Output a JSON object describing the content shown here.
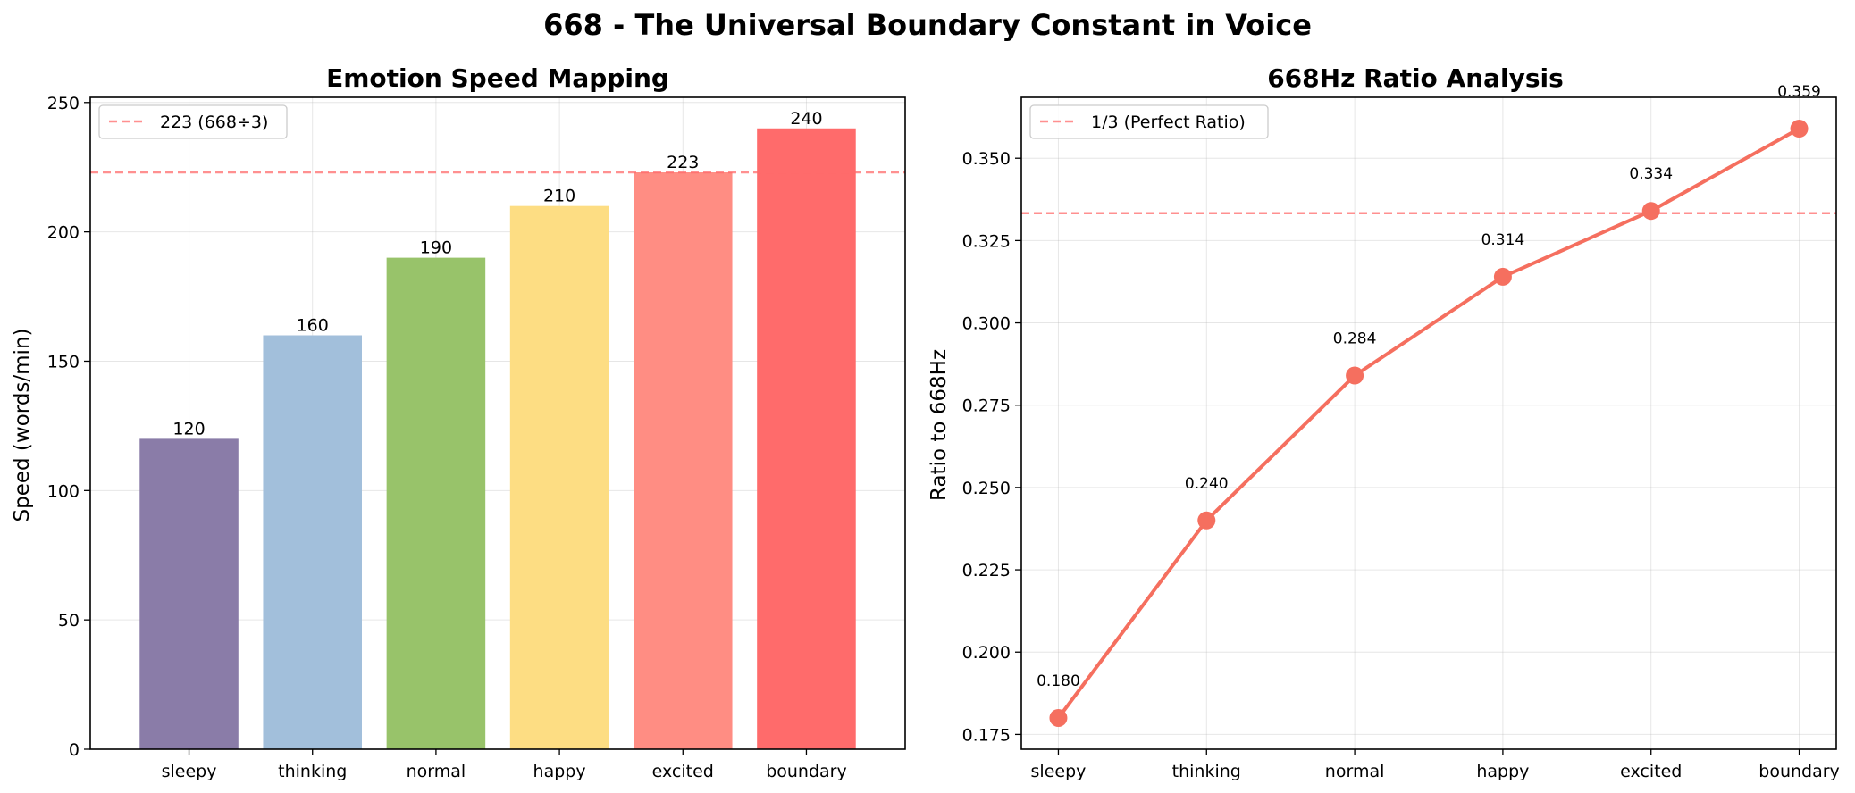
{
  "figure_title": "668 - The Universal Boundary Constant in Voice",
  "chart_data": [
    {
      "type": "bar",
      "title": "Emotion Speed Mapping",
      "xlabel": "",
      "ylabel": "Speed (words/min)",
      "categories": [
        "sleepy",
        "thinking",
        "normal",
        "happy",
        "excited",
        "boundary"
      ],
      "values": [
        120,
        160,
        190,
        210,
        223,
        240
      ],
      "value_labels": [
        "120",
        "160",
        "190",
        "210",
        "223",
        "240"
      ],
      "colors": [
        "#8a7ca8",
        "#a2bfdb",
        "#98c36a",
        "#fddd83",
        "#ff8d83",
        "#ff6b6b"
      ],
      "ylim": [
        0,
        252
      ],
      "yticks": [
        0,
        50,
        100,
        150,
        200,
        250
      ],
      "ytick_labels": [
        "0",
        "50",
        "100",
        "150",
        "200",
        "250"
      ],
      "reference_line": {
        "value": 223,
        "label": "223 (668÷3)",
        "color": "#ff6b6b",
        "style": "dashed"
      },
      "grid": true,
      "legend_position": "top-left"
    },
    {
      "type": "line",
      "title": "668Hz Ratio Analysis",
      "xlabel": "",
      "ylabel": "Ratio to 668Hz",
      "categories": [
        "sleepy",
        "thinking",
        "normal",
        "happy",
        "excited",
        "boundary"
      ],
      "values": [
        0.18,
        0.24,
        0.284,
        0.314,
        0.334,
        0.359
      ],
      "value_labels": [
        "0.180",
        "0.240",
        "0.284",
        "0.314",
        "0.334",
        "0.359"
      ],
      "color": "#f56f5f",
      "ylim": [
        0.1705,
        0.3685
      ],
      "yticks": [
        0.175,
        0.2,
        0.225,
        0.25,
        0.275,
        0.3,
        0.325,
        0.35
      ],
      "ytick_labels": [
        "0.175",
        "0.200",
        "0.225",
        "0.250",
        "0.275",
        "0.300",
        "0.325",
        "0.350"
      ],
      "reference_line": {
        "value": 0.3333,
        "label": "1/3 (Perfect Ratio)",
        "color": "#ff6b6b",
        "style": "dashed"
      },
      "grid": true,
      "legend_position": "top-left"
    }
  ]
}
